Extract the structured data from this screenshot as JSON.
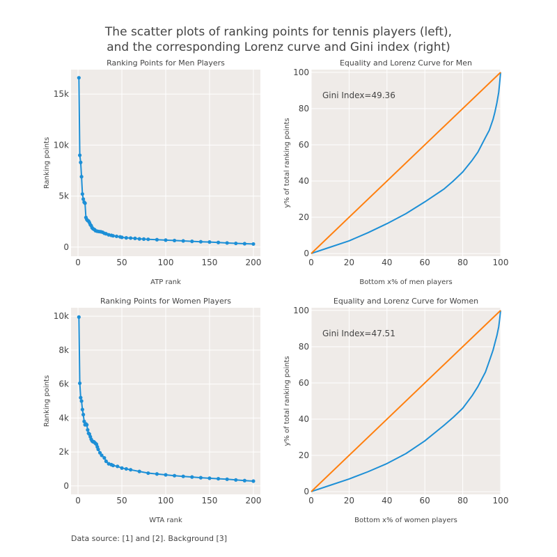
{
  "page": {
    "title_line1": "The scatter plots of ranking points for tennis players (left),",
    "title_line2": "and the corresponding Lorenz curve and Gini index (right)",
    "source": "Data source: [1] and [2]. Background [3]"
  },
  "colors": {
    "background": "#efebe8",
    "series_blue": "#1d8fd6",
    "equality_orange": "#ff7f0e",
    "text": "#444444"
  },
  "chart_data": [
    {
      "id": "men-scatter",
      "type": "scatter",
      "title": "Ranking Points for Men Players",
      "xlabel": "ATP rank",
      "ylabel": "Ranking points",
      "xlim": [
        -8,
        208
      ],
      "ylim": [
        -900,
        17400
      ],
      "xticks": [
        0,
        50,
        100,
        150,
        200
      ],
      "xtick_labels": [
        "0",
        "50",
        "100",
        "150",
        "200"
      ],
      "yticks": [
        0,
        5000,
        10000,
        15000
      ],
      "ytick_labels": [
        "0",
        "5k",
        "10k",
        "15k"
      ],
      "points_x": [
        1,
        2,
        3,
        4,
        5,
        6,
        7,
        8,
        9,
        10,
        11,
        12,
        13,
        14,
        15,
        16,
        17,
        18,
        19,
        20,
        22,
        24,
        26,
        28,
        30,
        32,
        35,
        38,
        40,
        44,
        48,
        50,
        55,
        60,
        65,
        70,
        75,
        80,
        90,
        100,
        110,
        120,
        130,
        140,
        150,
        160,
        170,
        180,
        190,
        200
      ],
      "points_y": [
        16600,
        9000,
        8300,
        6900,
        5200,
        4700,
        4400,
        4300,
        2900,
        2700,
        2600,
        2550,
        2400,
        2200,
        2100,
        1900,
        1800,
        1750,
        1700,
        1600,
        1550,
        1520,
        1500,
        1450,
        1350,
        1300,
        1200,
        1150,
        1100,
        1050,
        1000,
        950,
        900,
        880,
        850,
        800,
        780,
        760,
        720,
        680,
        640,
        600,
        560,
        520,
        490,
        450,
        400,
        360,
        330,
        300
      ]
    },
    {
      "id": "men-lorenz",
      "type": "line",
      "title": "Equality and Lorenz Curve  for Men",
      "xlabel": "Bottom x% of men players",
      "ylabel": "y% of total ranking points",
      "annotation": "Gini Index=49.36",
      "xlim": [
        0,
        100
      ],
      "ylim": [
        -1.5,
        101.5
      ],
      "xticks": [
        0,
        20,
        40,
        60,
        80,
        100
      ],
      "xtick_labels": [
        "0",
        "20",
        "40",
        "60",
        "80",
        "100"
      ],
      "yticks": [
        0,
        20,
        40,
        60,
        80,
        100
      ],
      "ytick_labels": [
        "0",
        "20",
        "40",
        "60",
        "80",
        "100"
      ],
      "series": [
        {
          "x": [
            0,
            10,
            20,
            30,
            40,
            50,
            60,
            70,
            75,
            80,
            85,
            88,
            90,
            92,
            94,
            96,
            97,
            98,
            99,
            99.5,
            100
          ],
          "y": [
            0,
            3.5,
            7,
            11.5,
            16.5,
            22,
            28.5,
            35.5,
            40,
            45,
            51.5,
            56,
            60,
            64,
            68,
            74,
            78,
            83,
            89,
            94,
            100
          ],
          "color": "#1d8fd6"
        },
        {
          "x": [
            0,
            100
          ],
          "y": [
            0,
            100
          ],
          "color": "#ff7f0e"
        }
      ]
    },
    {
      "id": "women-scatter",
      "type": "scatter",
      "title": "Ranking Points for Women Players",
      "xlabel": "WTA rank",
      "ylabel": "Ranking points",
      "xlim": [
        -8,
        208
      ],
      "ylim": [
        -500,
        10500
      ],
      "xticks": [
        0,
        50,
        100,
        150,
        200
      ],
      "xtick_labels": [
        "0",
        "50",
        "100",
        "150",
        "200"
      ],
      "yticks": [
        0,
        2000,
        4000,
        6000,
        8000,
        10000
      ],
      "ytick_labels": [
        "0",
        "2k",
        "4k",
        "6k",
        "8k",
        "10k"
      ],
      "points_x": [
        1,
        2,
        3,
        4,
        5,
        6,
        7,
        8,
        9,
        10,
        11,
        12,
        13,
        14,
        15,
        16,
        17,
        18,
        19,
        20,
        21,
        22,
        23,
        25,
        27,
        30,
        32,
        35,
        38,
        40,
        45,
        50,
        55,
        60,
        70,
        80,
        90,
        100,
        110,
        120,
        130,
        140,
        150,
        160,
        170,
        180,
        190,
        200
      ],
      "points_y": [
        9950,
        6050,
        5200,
        5000,
        4500,
        4200,
        3800,
        3600,
        3650,
        3600,
        3300,
        3100,
        3050,
        2900,
        2750,
        2650,
        2600,
        2600,
        2550,
        2500,
        2450,
        2300,
        2150,
        1950,
        1800,
        1650,
        1450,
        1300,
        1250,
        1200,
        1150,
        1050,
        1000,
        950,
        850,
        750,
        700,
        650,
        600,
        560,
        520,
        480,
        450,
        420,
        390,
        350,
        310,
        280
      ]
    },
    {
      "id": "women-lorenz",
      "type": "line",
      "title": "Equality and Lorenz Curve for Women",
      "xlabel": "Bottom x% of women players",
      "ylabel": "y% of total ranking points",
      "annotation": "Gini Index=47.51",
      "xlim": [
        0,
        100
      ],
      "ylim": [
        -1.5,
        101.5
      ],
      "xticks": [
        0,
        20,
        40,
        60,
        80,
        100
      ],
      "xtick_labels": [
        "0",
        "20",
        "40",
        "60",
        "80",
        "100"
      ],
      "yticks": [
        0,
        20,
        40,
        60,
        80,
        100
      ],
      "ytick_labels": [
        "0",
        "20",
        "40",
        "60",
        "80",
        "100"
      ],
      "series": [
        {
          "x": [
            0,
            10,
            20,
            30,
            40,
            50,
            60,
            70,
            75,
            80,
            85,
            88,
            90,
            92,
            94,
            96,
            97,
            98,
            99,
            99.5,
            100
          ],
          "y": [
            0,
            3.5,
            7,
            11,
            15.5,
            21,
            28,
            36.5,
            41,
            46,
            53,
            58,
            62,
            66,
            72,
            78,
            82,
            86,
            91,
            95,
            100
          ],
          "color": "#1d8fd6"
        },
        {
          "x": [
            0,
            100
          ],
          "y": [
            0,
            100
          ],
          "color": "#ff7f0e"
        }
      ]
    }
  ]
}
